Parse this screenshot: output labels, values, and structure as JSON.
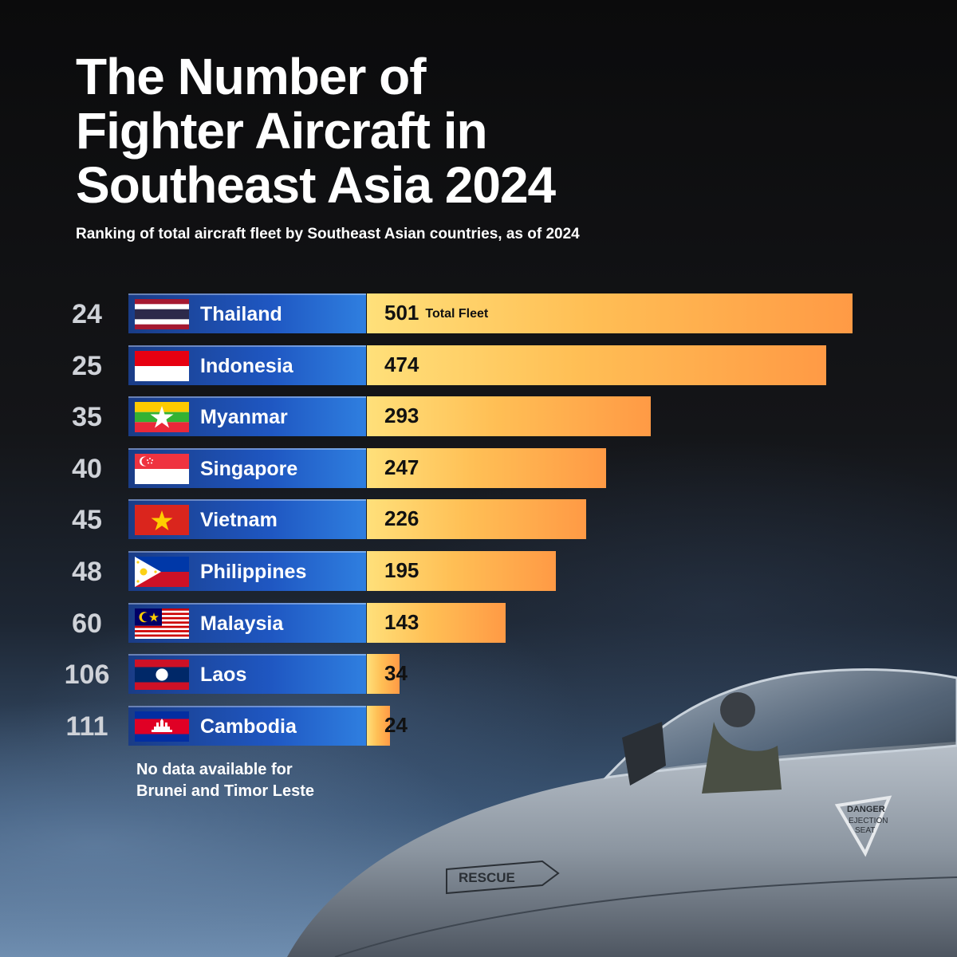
{
  "title_lines": [
    "The Number of",
    "Fighter Aircraft in",
    "Southeast Asia 2024"
  ],
  "subtitle": "Ranking of total aircraft fleet by Southeast Asian countries, as of 2024",
  "unit_label": "Total Fleet",
  "note_lines": [
    "No data available for",
    "Brunei and Timor Leste"
  ],
  "jet_text": {
    "rescue": "RESCUE",
    "danger": "DANGER",
    "ejection": "EJECTION",
    "seat": "SEAT"
  },
  "colors": {
    "label_bar": "#1f57c2",
    "value_bar_start": "#ffe07a",
    "value_bar_end": "#ff9a45"
  },
  "chart_data": {
    "type": "bar",
    "orientation": "horizontal",
    "categories": [
      "Thailand",
      "Indonesia",
      "Myanmar",
      "Singapore",
      "Vietnam",
      "Philippines",
      "Malaysia",
      "Laos",
      "Cambodia"
    ],
    "ranks": [
      "24",
      "25",
      "35",
      "40",
      "45",
      "48",
      "60",
      "106",
      "111"
    ],
    "flags": [
      "thailand-flag",
      "indonesia-flag",
      "myanmar-flag",
      "singapore-flag",
      "vietnam-flag",
      "philippines-flag",
      "malaysia-flag",
      "laos-flag",
      "cambodia-flag"
    ],
    "values": [
      501,
      474,
      293,
      247,
      226,
      195,
      143,
      34,
      24
    ],
    "title": "The Number of Fighter Aircraft in Southeast Asia 2024",
    "xlabel": "",
    "ylabel": "",
    "grid": false
  }
}
